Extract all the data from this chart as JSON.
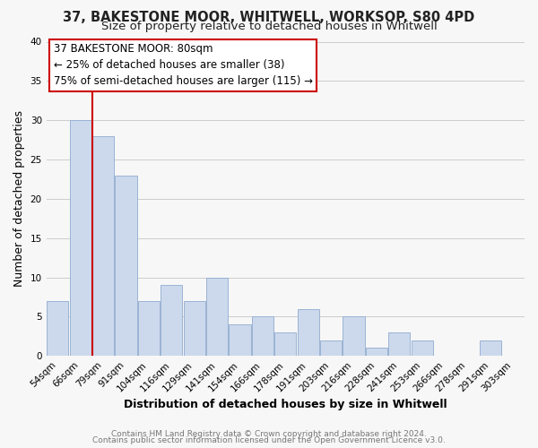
{
  "title_line1": "37, BAKESTONE MOOR, WHITWELL, WORKSOP, S80 4PD",
  "title_line2": "Size of property relative to detached houses in Whitwell",
  "xlabel": "Distribution of detached houses by size in Whitwell",
  "ylabel": "Number of detached properties",
  "footer_line1": "Contains HM Land Registry data © Crown copyright and database right 2024.",
  "footer_line2": "Contains public sector information licensed under the Open Government Licence v3.0.",
  "annotation_line1": "37 BAKESTONE MOOR: 80sqm",
  "annotation_line2": "← 25% of detached houses are smaller (38)",
  "annotation_line3": "75% of semi-detached houses are larger (115) →",
  "bar_color": "#ccd9ec",
  "bar_edge_color": "#9ab3d4",
  "marker_color": "#cc0000",
  "bins": [
    "54sqm",
    "66sqm",
    "79sqm",
    "91sqm",
    "104sqm",
    "116sqm",
    "129sqm",
    "141sqm",
    "154sqm",
    "166sqm",
    "178sqm",
    "191sqm",
    "203sqm",
    "216sqm",
    "228sqm",
    "241sqm",
    "253sqm",
    "266sqm",
    "278sqm",
    "291sqm",
    "303sqm"
  ],
  "values": [
    7,
    30,
    28,
    23,
    7,
    9,
    7,
    10,
    4,
    5,
    3,
    6,
    2,
    5,
    1,
    3,
    2,
    0,
    0,
    2,
    0
  ],
  "ylim": [
    0,
    40
  ],
  "yticks": [
    0,
    5,
    10,
    15,
    20,
    25,
    30,
    35,
    40
  ],
  "background_color": "#f7f7f7",
  "grid_color": "#cccccc",
  "title_fontsize": 10.5,
  "subtitle_fontsize": 9.5,
  "axis_label_fontsize": 9,
  "tick_fontsize": 7.5,
  "annotation_fontsize": 8.5,
  "footer_fontsize": 6.5,
  "red_line_bin_index": 2
}
